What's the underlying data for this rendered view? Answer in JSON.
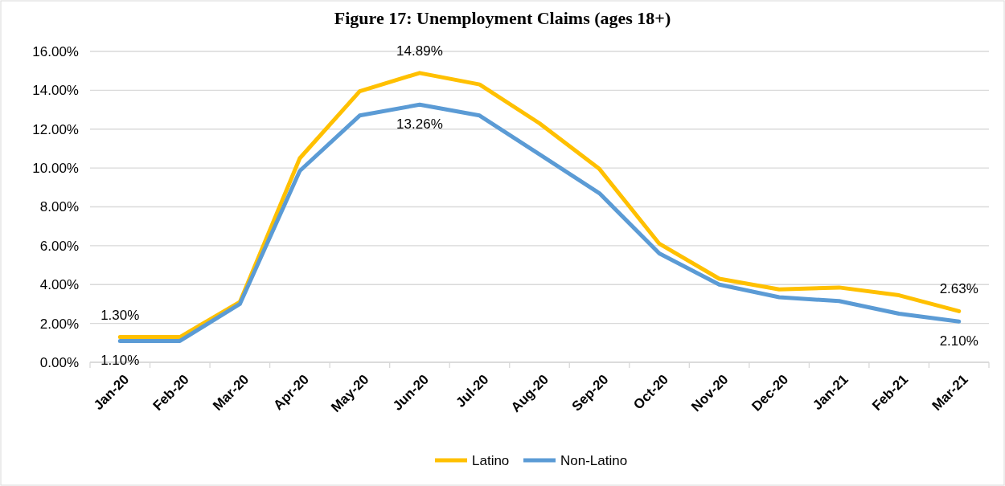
{
  "chart_data": {
    "type": "line",
    "title": "Figure 17: Unemployment Claims (ages 18+)",
    "categories": [
      "Jan-20",
      "Feb-20",
      "Mar-20",
      "Apr-20",
      "May-20",
      "Jun-20",
      "Jul-20",
      "Aug-20",
      "Sep-20",
      "Oct-20",
      "Nov-20",
      "Dec-20",
      "Jan-21",
      "Feb-21",
      "Mar-21"
    ],
    "series": [
      {
        "name": "Latino",
        "color": "#ffc000",
        "values": [
          1.3,
          1.3,
          3.1,
          10.5,
          13.95,
          14.89,
          14.3,
          12.3,
          9.95,
          6.1,
          4.3,
          3.75,
          3.85,
          3.45,
          2.63
        ],
        "value_labels": [
          "1.30%",
          null,
          null,
          null,
          null,
          "14.89%",
          null,
          null,
          null,
          null,
          null,
          null,
          null,
          null,
          "2.63%"
        ]
      },
      {
        "name": "Non-Latino",
        "color": "#5b9bd5",
        "values": [
          1.1,
          1.1,
          3.0,
          9.85,
          12.7,
          13.26,
          12.7,
          10.7,
          8.7,
          5.6,
          4.0,
          3.35,
          3.15,
          2.5,
          2.1
        ],
        "value_labels": [
          "1.10%",
          null,
          null,
          null,
          null,
          "13.26%",
          null,
          null,
          null,
          null,
          null,
          null,
          null,
          null,
          "2.10%"
        ]
      }
    ],
    "ylim": [
      0,
      16
    ],
    "yticks": [
      {
        "value": 0,
        "label": "0.00%"
      },
      {
        "value": 2,
        "label": "2.00%"
      },
      {
        "value": 4,
        "label": "4.00%"
      },
      {
        "value": 6,
        "label": "6.00%"
      },
      {
        "value": 8,
        "label": "8.00%"
      },
      {
        "value": 10,
        "label": "10.00%"
      },
      {
        "value": 12,
        "label": "12.00%"
      },
      {
        "value": 14,
        "label": "14.00%"
      },
      {
        "value": 16,
        "label": "16.00%"
      }
    ],
    "grid": "y",
    "legend": "bottom",
    "marker": "none",
    "line_style": "solid"
  }
}
